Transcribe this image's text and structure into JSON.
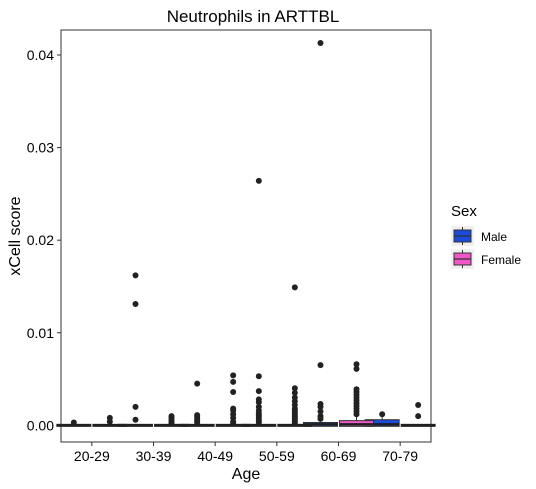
{
  "chart_data": {
    "type": "box",
    "title": "Neutrophils in ARTTBL",
    "xlabel": "Age",
    "ylabel": "xCell score",
    "categories": [
      "20-29",
      "30-39",
      "40-49",
      "50-59",
      "60-69",
      "70-79"
    ],
    "y_ticks": [
      "0.00",
      "0.01",
      "0.02",
      "0.03",
      "0.04"
    ],
    "y_tick_values": [
      0,
      0.01,
      0.02,
      0.03,
      0.04
    ],
    "ylim": [
      -0.0018,
      0.0427
    ],
    "grid": false,
    "legend": {
      "title": "Sex",
      "position": "right",
      "entries": [
        {
          "label": "Male",
          "color": "#1a4bdc"
        },
        {
          "label": "Female",
          "color": "#f056c7"
        }
      ]
    },
    "series": [
      {
        "name": "Male",
        "color": "#1a4bdc",
        "boxes": [
          {
            "category": "20-29",
            "q1": 0,
            "median": 0,
            "q3": 0,
            "whisker_low": 0,
            "whisker_high": 0.0001,
            "outliers": [
              0.0003
            ]
          },
          {
            "category": "30-39",
            "q1": 0,
            "median": 0,
            "q3": 0,
            "whisker_low": 0,
            "whisker_high": 0.0001,
            "outliers": [
              0.0006,
              0.002,
              0.0131,
              0.0162
            ]
          },
          {
            "category": "40-49",
            "q1": 0,
            "median": 0,
            "q3": 0,
            "whisker_low": 0,
            "whisker_high": 0.0001,
            "outliers": [
              0.0003,
              0.0005,
              0.0007,
              0.0009,
              0.0011,
              0.0045
            ]
          },
          {
            "category": "50-59",
            "q1": 0,
            "median": 0,
            "q3": 0,
            "whisker_low": 0,
            "whisker_high": 0.0001,
            "outliers": [
              0.0003,
              0.0005,
              0.0007,
              0.0009,
              0.0011,
              0.0013,
              0.0016,
              0.002,
              0.0025,
              0.0028,
              0.0037,
              0.0053,
              0.0264
            ]
          },
          {
            "category": "60-69",
            "q1": 0,
            "median": 0.0001,
            "q3": 0.0002,
            "whisker_low": 0,
            "whisker_high": 0.0004,
            "outliers": [
              0.0007,
              0.001,
              0.0015,
              0.002,
              0.0023,
              0.0065,
              0.0413
            ]
          },
          {
            "category": "70-79",
            "q1": 0,
            "median": 0.0001,
            "q3": 0.0005,
            "whisker_low": 0,
            "whisker_high": 0.0009,
            "outliers": [
              0.0012
            ]
          }
        ]
      },
      {
        "name": "Female",
        "color": "#f056c7",
        "boxes": [
          {
            "category": "20-29",
            "q1": 0,
            "median": 0,
            "q3": 0,
            "whisker_low": 0,
            "whisker_high": 0.0001,
            "outliers": [
              0.0004,
              0.0008
            ]
          },
          {
            "category": "30-39",
            "q1": 0,
            "median": 0,
            "q3": 0,
            "whisker_low": 0,
            "whisker_high": 0.0001,
            "outliers": [
              0.0002,
              0.0004,
              0.0006,
              0.0008,
              0.001
            ]
          },
          {
            "category": "40-49",
            "q1": 0,
            "median": 0,
            "q3": 0,
            "whisker_low": 0,
            "whisker_high": 0.0001,
            "outliers": [
              0.0002,
              0.0004,
              0.0008,
              0.0012,
              0.0016,
              0.0018,
              0.0036,
              0.0047,
              0.0054
            ]
          },
          {
            "category": "50-59",
            "q1": 0,
            "median": 0,
            "q3": 0,
            "whisker_low": 0,
            "whisker_high": 0.0001,
            "outliers": [
              0.0002,
              0.0004,
              0.0006,
              0.0008,
              0.001,
              0.0012,
              0.0014,
              0.0016,
              0.0018,
              0.0022,
              0.0026,
              0.003,
              0.0035,
              0.004,
              0.0149
            ]
          },
          {
            "category": "60-69",
            "q1": 0,
            "median": 0.0001,
            "q3": 0.0004,
            "whisker_low": 0,
            "whisker_high": 0.0009,
            "outliers": [
              0.0012,
              0.0015,
              0.0018,
              0.0021,
              0.0024,
              0.0027,
              0.003,
              0.0033,
              0.0036,
              0.0039,
              0.0061,
              0.0066
            ]
          },
          {
            "category": "70-79",
            "q1": 0,
            "median": 0,
            "q3": 0,
            "whisker_low": 0,
            "whisker_high": 0.0001,
            "outliers": [
              0.001,
              0.0022
            ]
          }
        ]
      }
    ]
  }
}
